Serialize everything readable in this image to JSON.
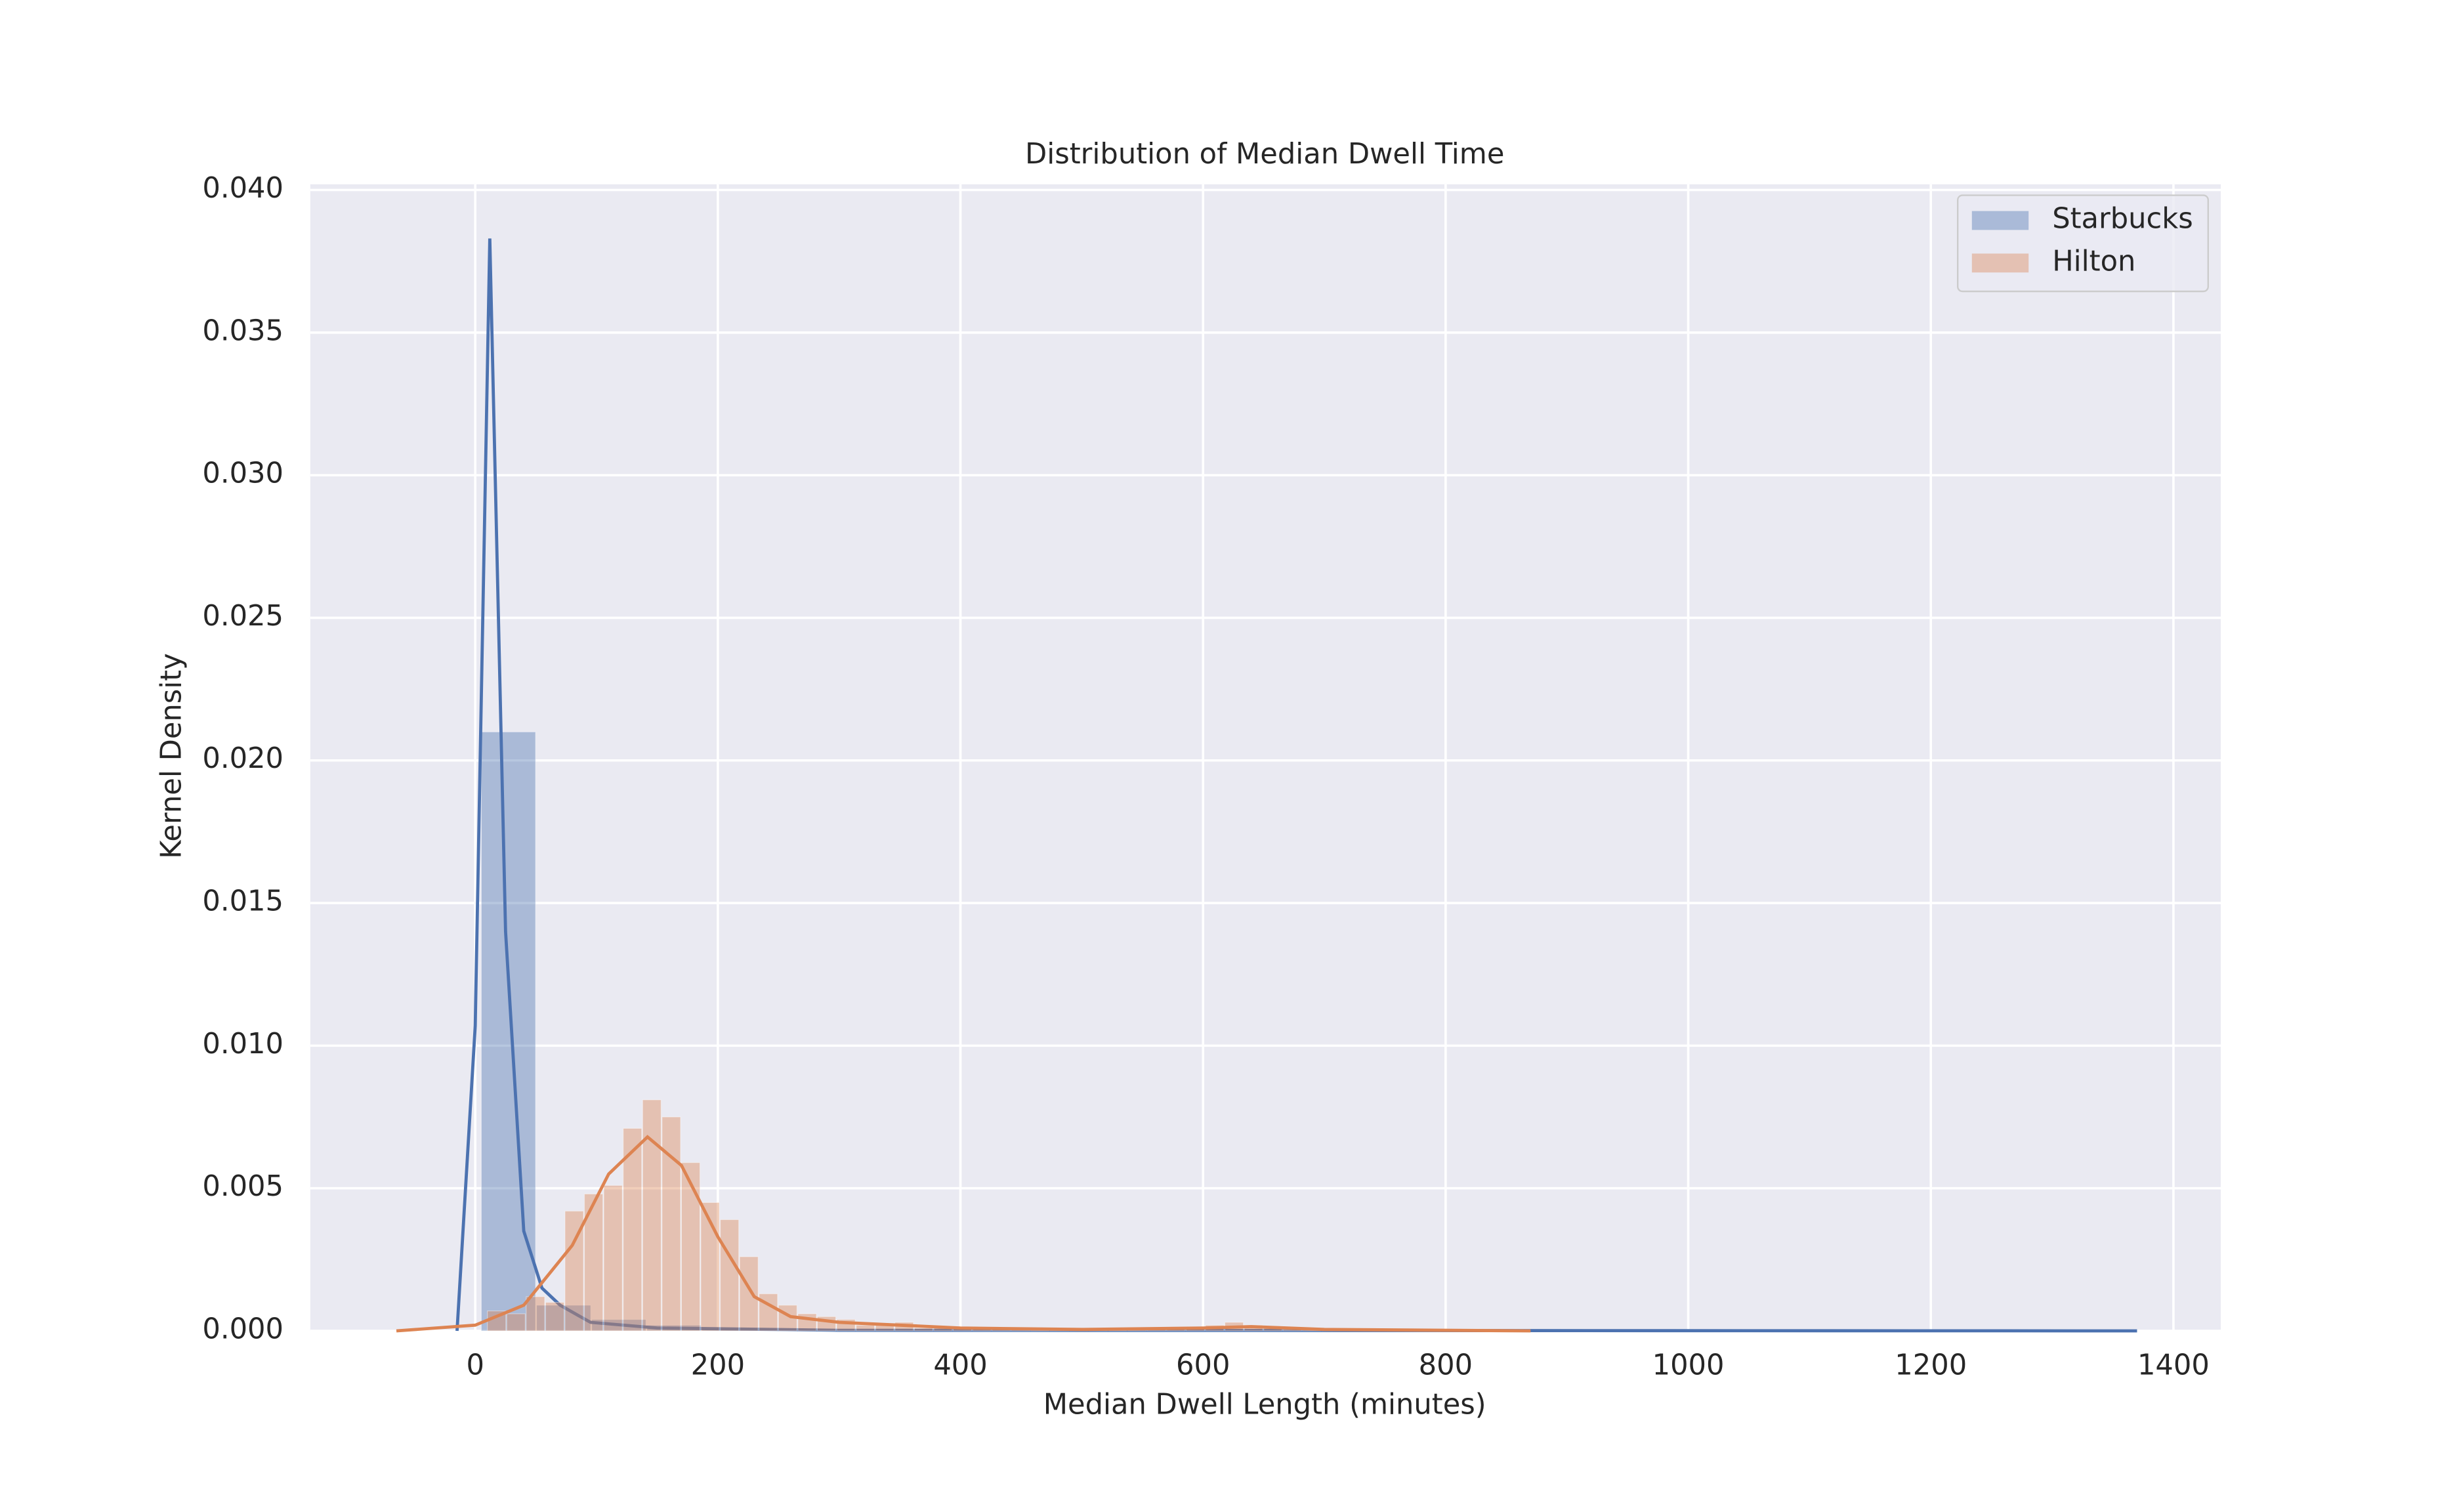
{
  "chart_data": {
    "type": "histogram",
    "title": "Distribution of Median Dwell Time",
    "x_label": "Median Dwell Length (minutes)",
    "y_label": "Kernel Density",
    "xlim": [
      -136,
      1439
    ],
    "ylim": [
      0,
      0.0402
    ],
    "xticks": [
      0,
      200,
      400,
      600,
      800,
      1000,
      1200,
      1400
    ],
    "yticks": [
      {
        "value": 0,
        "label": "0.000"
      },
      {
        "value": 0.005,
        "label": "0.005"
      },
      {
        "value": 0.01,
        "label": "0.010"
      },
      {
        "value": 0.015,
        "label": "0.015"
      },
      {
        "value": 0.02,
        "label": "0.020"
      },
      {
        "value": 0.025,
        "label": "0.025"
      },
      {
        "value": 0.03,
        "label": "0.030"
      },
      {
        "value": 0.035,
        "label": "0.035"
      },
      {
        "value": 0.04,
        "label": "0.040"
      }
    ],
    "grid": true,
    "legend": "upper right",
    "series": [
      {
        "name": "Starbucks",
        "color": "#4c72b0",
        "bins": [
          5,
          50.5,
          96,
          141.5,
          187,
          232.5,
          278,
          323.5,
          369,
          414.5,
          460,
          505.5,
          551,
          596.5,
          642,
          687.5,
          733,
          778.5,
          824,
          869.5,
          915,
          960.5,
          1006,
          1051.5,
          1097,
          1142.5,
          1188,
          1233.5,
          1279,
          1324.5,
          1370
        ],
        "values": [
          0.021,
          0.0009,
          0.0004,
          0.0002,
          0.0001,
          5e-05,
          3e-05,
          2e-05,
          2e-05,
          1e-05,
          1e-05,
          1e-05,
          1e-05,
          1e-05,
          1e-05,
          1e-05,
          1e-05,
          1e-05,
          1e-05,
          1e-05,
          1e-05,
          1e-05,
          1e-05,
          1e-05,
          1e-05,
          1e-05,
          1e-05,
          1e-05,
          1e-05,
          1e-05
        ],
        "kde_x": [
          -15,
          0,
          12,
          25,
          40,
          55,
          70,
          95,
          150,
          300,
          1370
        ],
        "kde_y": [
          0,
          0.0107,
          0.0383,
          0.014,
          0.0035,
          0.0015,
          0.0009,
          0.0003,
          0.0001,
          2e-05,
          0
        ]
      },
      {
        "name": "Hilton",
        "color": "#dd8452",
        "bins": [
          10,
          26,
          42,
          58,
          74,
          90,
          106,
          122,
          138,
          154,
          170,
          186,
          202,
          218,
          234,
          250,
          266,
          282,
          298,
          314,
          330,
          346,
          362,
          378,
          394,
          410,
          426,
          442,
          458,
          474,
          490,
          506,
          522,
          538,
          554,
          570,
          586,
          602,
          618,
          634,
          650,
          666,
          682,
          698,
          714,
          730,
          746,
          762,
          778,
          794,
          810
        ],
        "values": [
          0.0007,
          0.0006,
          0.0012,
          0.001,
          0.0042,
          0.0048,
          0.0051,
          0.0071,
          0.0081,
          0.0075,
          0.0059,
          0.0045,
          0.0039,
          0.0026,
          0.0013,
          0.0009,
          0.0006,
          0.0005,
          0.0004,
          0.0002,
          0.0002,
          0.0003,
          0.0001,
          0.0001,
          0.0001,
          0.0001,
          0.0001,
          5e-05,
          5e-05,
          5e-05,
          5e-05,
          5e-05,
          5e-05,
          5e-05,
          5e-05,
          5e-05,
          0.0001,
          0.0002,
          0.0003,
          0.0002,
          0.0001,
          5e-05,
          5e-05,
          5e-05,
          5e-05,
          3e-05,
          3e-05,
          3e-05,
          3e-05,
          3e-05
        ],
        "kde_x": [
          -65,
          0,
          40,
          80,
          110,
          142,
          170,
          200,
          230,
          260,
          300,
          400,
          500,
          600,
          640,
          700,
          870
        ],
        "kde_y": [
          0,
          0.0002,
          0.0009,
          0.003,
          0.0055,
          0.0068,
          0.0058,
          0.0033,
          0.0012,
          0.0005,
          0.0003,
          0.0001,
          5e-05,
          0.0001,
          0.00015,
          5e-05,
          0
        ]
      }
    ]
  }
}
